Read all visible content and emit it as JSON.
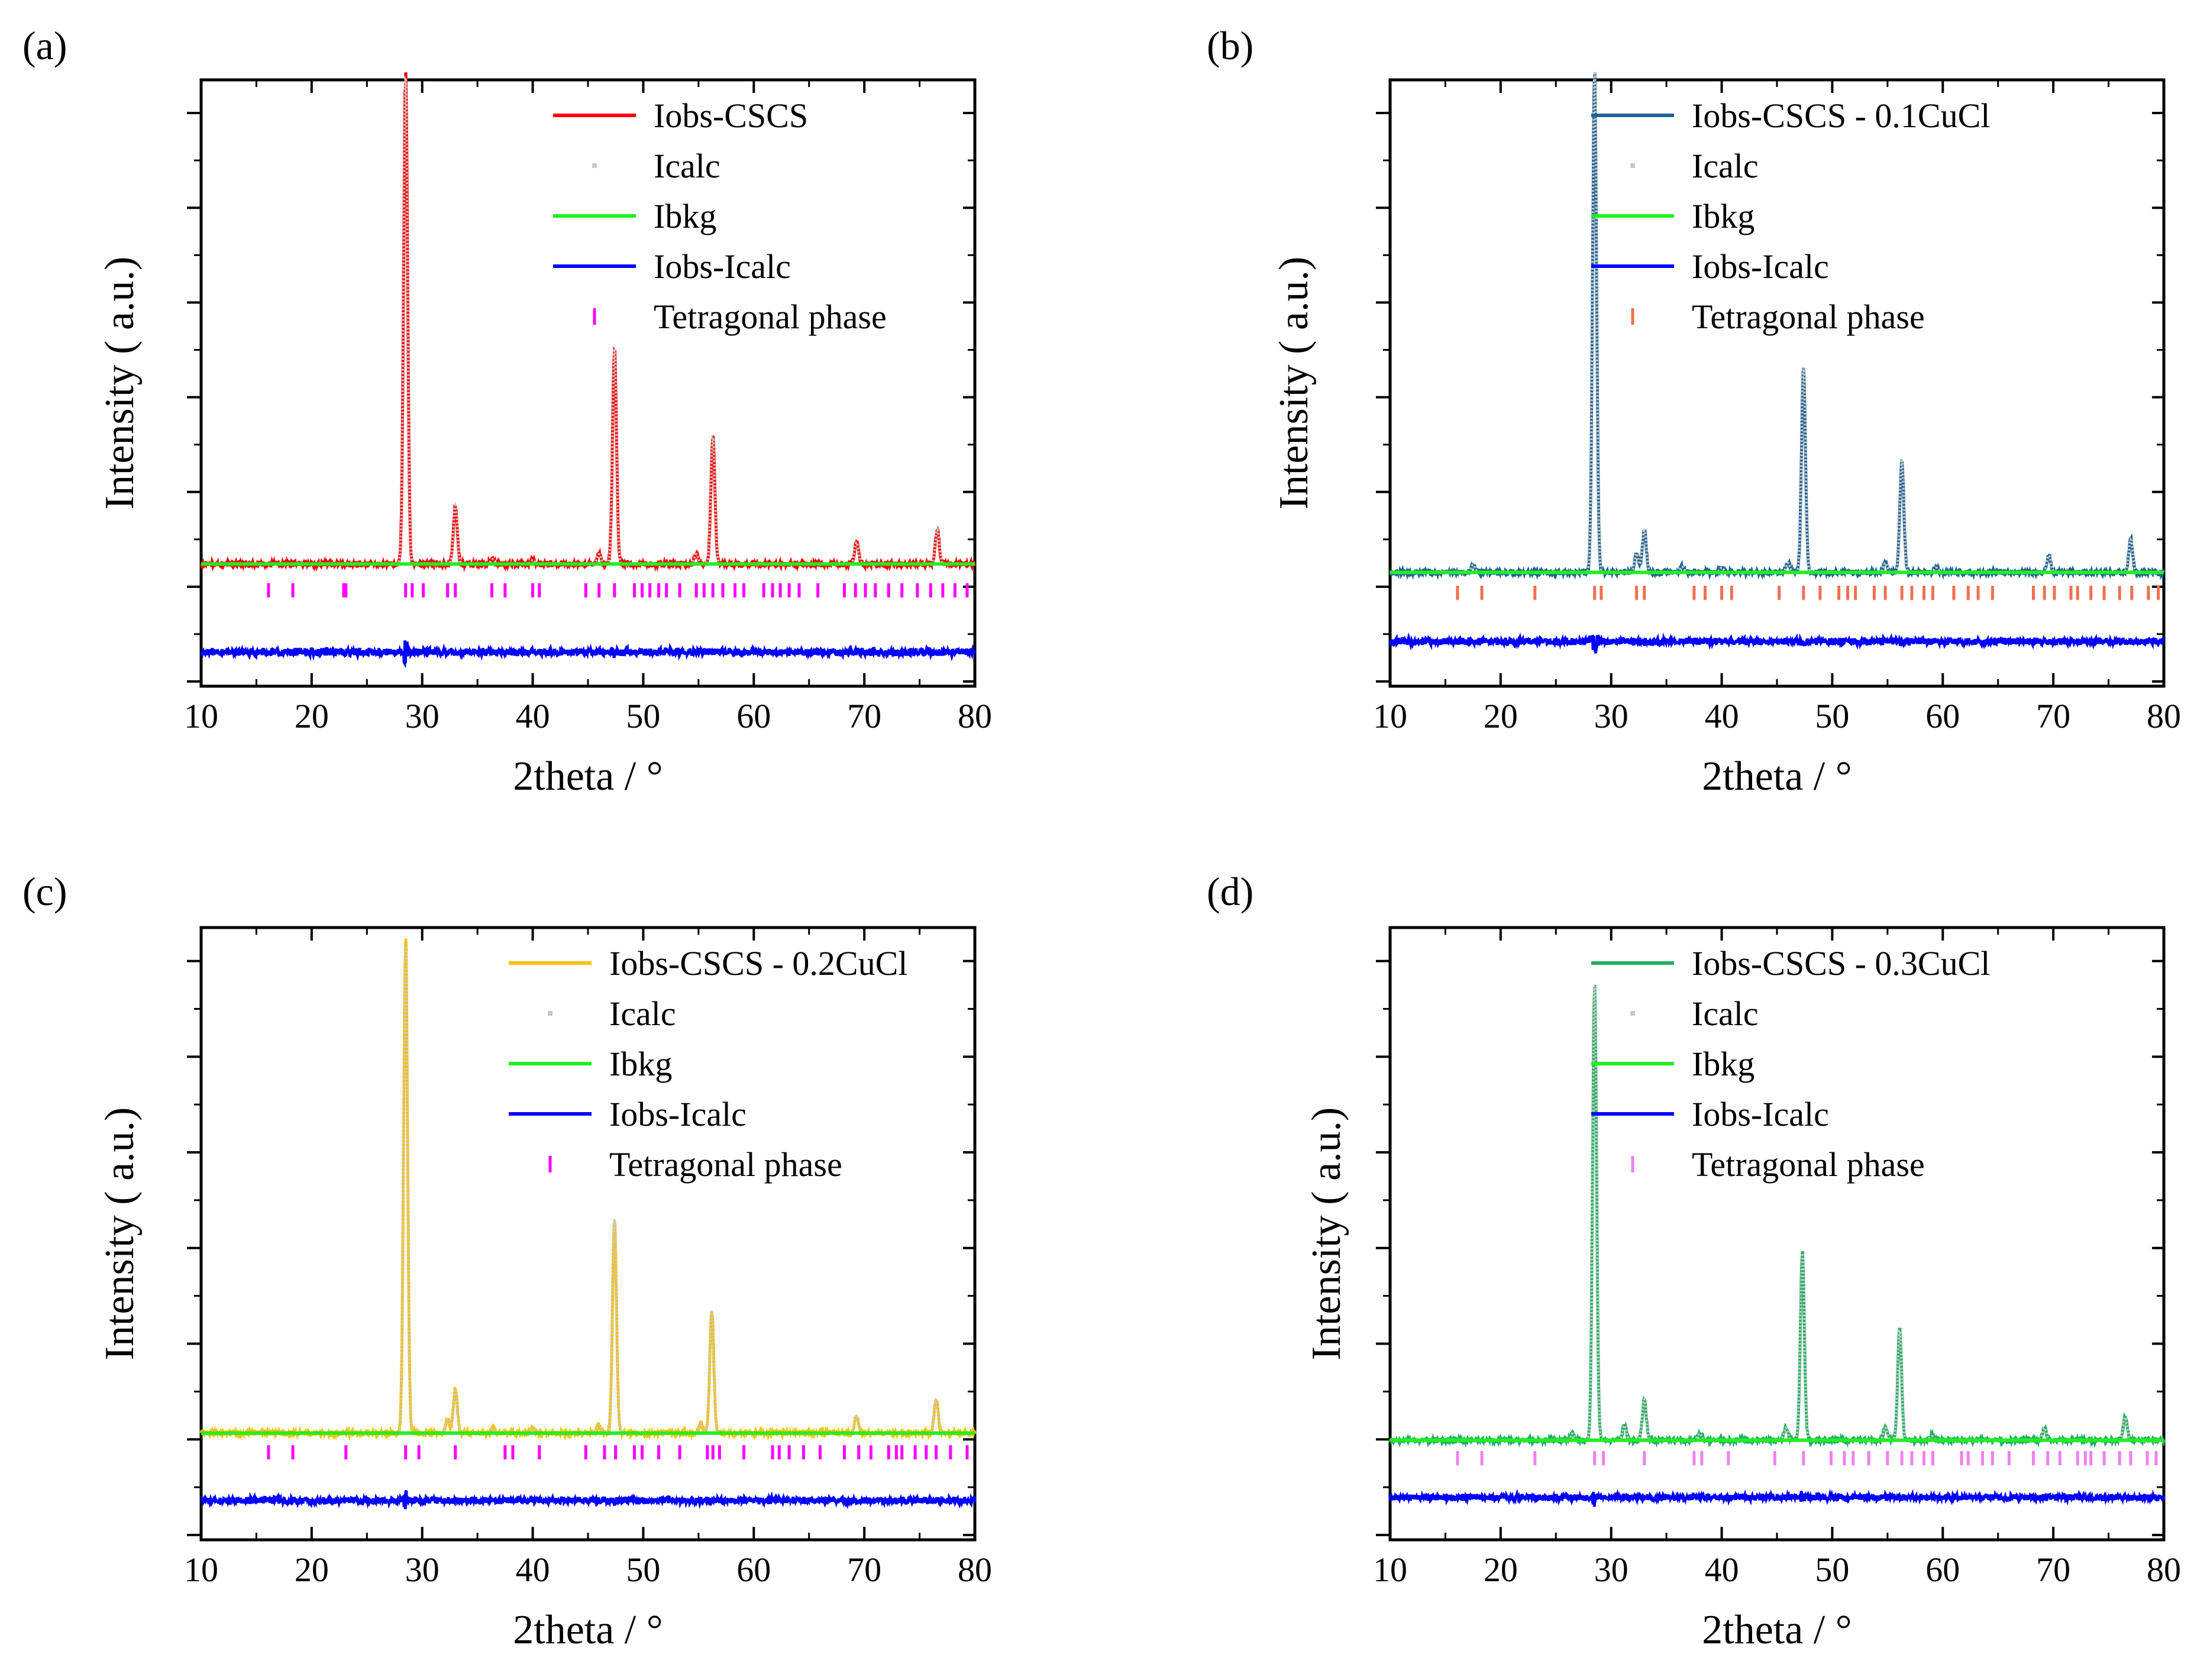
{
  "chart_data": [
    {
      "panel": "(a)",
      "type": "line",
      "xlabel": "2theta / °",
      "ylabel": "Intensity ( a.u.)",
      "xlim": [
        10,
        80
      ],
      "xticks": [
        10,
        20,
        30,
        40,
        50,
        60,
        70,
        80
      ],
      "ylim": [
        -1.0,
        5.2
      ],
      "obs_color": "#ff0000",
      "calc_color": "#c8c8c8",
      "bkg_color": "#22ee22",
      "diff_color": "#0000ff",
      "tick_color": "#ff00ff",
      "legend": [
        "Iobs-CSCS",
        "Icalc",
        "Ibkg",
        "Iobs-Icalc",
        "Tetragonal phase"
      ],
      "background": 0.25,
      "diff_baseline": -0.65,
      "tick_row": -0.02,
      "peaks": [
        {
          "x": 28.5,
          "h": 5.0
        },
        {
          "x": 33.0,
          "h": 0.6
        },
        {
          "x": 36.4,
          "h": 0.05
        },
        {
          "x": 40.0,
          "h": 0.04
        },
        {
          "x": 46.0,
          "h": 0.1
        },
        {
          "x": 47.4,
          "h": 2.2
        },
        {
          "x": 54.8,
          "h": 0.1
        },
        {
          "x": 56.3,
          "h": 1.3
        },
        {
          "x": 69.3,
          "h": 0.22
        },
        {
          "x": 76.6,
          "h": 0.35
        }
      ],
      "tetragonal_ticks": [
        16.1,
        18.3,
        22.9,
        23.1,
        28.5,
        29.1,
        30.1,
        32.3,
        33.0,
        36.3,
        37.5,
        40.0,
        40.6,
        44.8,
        46.0,
        47.4,
        49.2,
        49.9,
        50.6,
        51.4,
        52.1,
        53.3,
        54.8,
        55.5,
        56.3,
        57.2,
        58.3,
        59.1,
        60.9,
        61.7,
        62.4,
        63.2,
        64.1,
        65.8,
        68.2,
        69.2,
        70.1,
        71.0,
        72.2,
        73.4,
        74.8,
        76.0,
        77.1,
        78.2,
        79.3
      ]
    },
    {
      "panel": "(b)",
      "type": "line",
      "xlabel": "2theta / °",
      "ylabel": "Intensity ( a.u.)",
      "xlim": [
        10,
        80
      ],
      "xticks": [
        10,
        20,
        30,
        40,
        50,
        60,
        70,
        80
      ],
      "ylim": [
        -1.0,
        5.5
      ],
      "obs_color": "#1f6396",
      "calc_color": "#c8c8c8",
      "bkg_color": "#22ee22",
      "diff_color": "#0000ff",
      "tick_color": "#f07050",
      "legend": [
        "Iobs-CSCS - 0.1CuCl",
        "Icalc",
        "Ibkg",
        "Iobs-Icalc",
        "Tetragonal phase"
      ],
      "background": 0.22,
      "diff_baseline": -0.52,
      "tick_row": 0.0,
      "peaks": [
        {
          "x": 17.5,
          "h": 0.08
        },
        {
          "x": 28.5,
          "h": 5.4
        },
        {
          "x": 32.3,
          "h": 0.2
        },
        {
          "x": 33.0,
          "h": 0.45
        },
        {
          "x": 36.4,
          "h": 0.06
        },
        {
          "x": 40.0,
          "h": 0.05
        },
        {
          "x": 46.0,
          "h": 0.1
        },
        {
          "x": 47.4,
          "h": 2.2
        },
        {
          "x": 54.8,
          "h": 0.1
        },
        {
          "x": 56.3,
          "h": 1.2
        },
        {
          "x": 59.4,
          "h": 0.05
        },
        {
          "x": 69.6,
          "h": 0.18
        },
        {
          "x": 77.0,
          "h": 0.35
        }
      ],
      "tetragonal_ticks": [
        16.1,
        18.3,
        23.1,
        28.5,
        29.1,
        32.3,
        33.0,
        37.5,
        38.5,
        40.0,
        40.9,
        45.2,
        47.4,
        48.9,
        50.6,
        51.4,
        52.1,
        53.8,
        54.8,
        56.3,
        57.2,
        58.3,
        59.1,
        61.0,
        62.3,
        63.2,
        64.5,
        68.2,
        69.2,
        70.1,
        71.6,
        72.2,
        73.4,
        74.6,
        76.0,
        77.1,
        78.6,
        79.5
      ]
    },
    {
      "panel": "(c)",
      "type": "line",
      "xlabel": "2theta / °",
      "ylabel": "Intensity ( a.u.)",
      "xlim": [
        10,
        80
      ],
      "xticks": [
        10,
        20,
        30,
        40,
        50,
        60,
        70,
        80
      ],
      "ylim": [
        -1.0,
        6.0
      ],
      "obs_color": "#ffc000",
      "calc_color": "#c8c8c8",
      "bkg_color": "#22ee22",
      "diff_color": "#0000ff",
      "tick_color": "#ff00ff",
      "legend": [
        "Iobs-CSCS - 0.2CuCl",
        "Icalc",
        "Ibkg",
        "Iobs-Icalc",
        "Tetragonal phase"
      ],
      "background": 0.22,
      "diff_baseline": -0.55,
      "tick_row": 0.0,
      "peaks": [
        {
          "x": 28.5,
          "h": 5.6
        },
        {
          "x": 32.3,
          "h": 0.15
        },
        {
          "x": 33.0,
          "h": 0.5
        },
        {
          "x": 36.4,
          "h": 0.05
        },
        {
          "x": 40.0,
          "h": 0.05
        },
        {
          "x": 46.0,
          "h": 0.1
        },
        {
          "x": 47.4,
          "h": 2.45
        },
        {
          "x": 55.2,
          "h": 0.12
        },
        {
          "x": 56.2,
          "h": 1.4
        },
        {
          "x": 69.3,
          "h": 0.2
        },
        {
          "x": 76.5,
          "h": 0.38
        }
      ],
      "tetragonal_ticks": [
        16.1,
        18.3,
        23.1,
        28.5,
        29.7,
        33.0,
        37.5,
        38.2,
        40.6,
        44.8,
        46.5,
        47.5,
        49.2,
        49.9,
        51.4,
        53.3,
        55.8,
        56.3,
        56.9,
        59.1,
        61.7,
        62.3,
        63.2,
        64.5,
        66.0,
        68.2,
        69.5,
        70.6,
        72.2,
        72.9,
        73.4,
        74.6,
        75.6,
        76.5,
        77.8,
        79.3
      ]
    },
    {
      "panel": "(d)",
      "type": "line",
      "xlabel": "2theta / °",
      "ylabel": "Intensity ( a.u.)",
      "xlim": [
        10,
        80
      ],
      "xticks": [
        10,
        20,
        30,
        40,
        50,
        60,
        70,
        80
      ],
      "ylim": [
        -1.0,
        6.5
      ],
      "obs_color": "#20b060",
      "calc_color": "#c8c8c8",
      "bkg_color": "#22ee22",
      "diff_color": "#0000ff",
      "tick_color": "#f080f0",
      "legend": [
        "Iobs-CSCS - 0.3CuCl",
        "Icalc",
        "Ibkg",
        "Iobs-Icalc",
        "Tetragonal phase"
      ],
      "background": 0.22,
      "diff_baseline": -0.48,
      "tick_row": 0.0,
      "peaks": [
        {
          "x": 26.5,
          "h": 0.08
        },
        {
          "x": 28.5,
          "h": 5.6
        },
        {
          "x": 31.2,
          "h": 0.18
        },
        {
          "x": 33.0,
          "h": 0.5
        },
        {
          "x": 38.0,
          "h": 0.08
        },
        {
          "x": 45.8,
          "h": 0.15
        },
        {
          "x": 47.3,
          "h": 2.3
        },
        {
          "x": 54.8,
          "h": 0.15
        },
        {
          "x": 56.1,
          "h": 1.35
        },
        {
          "x": 59.0,
          "h": 0.05
        },
        {
          "x": 69.2,
          "h": 0.15
        },
        {
          "x": 76.5,
          "h": 0.28
        }
      ],
      "tetragonal_ticks": [
        16.1,
        18.3,
        23.1,
        28.5,
        29.3,
        33.0,
        37.5,
        38.2,
        40.6,
        44.8,
        47.4,
        49.9,
        51.1,
        51.9,
        53.3,
        55.0,
        56.3,
        57.2,
        58.3,
        59.1,
        61.7,
        62.3,
        63.6,
        64.5,
        66.0,
        68.2,
        69.5,
        70.6,
        72.2,
        72.9,
        73.4,
        74.6,
        76.0,
        77.0,
        78.5,
        79.3
      ]
    }
  ]
}
